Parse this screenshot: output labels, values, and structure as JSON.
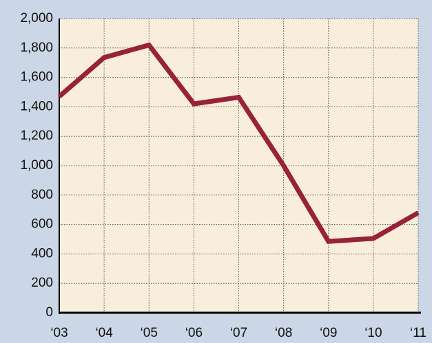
{
  "chart_data": {
    "type": "line",
    "categories": [
      "‘03",
      "‘04",
      "‘05",
      "‘06",
      "‘07",
      "‘08",
      "‘09",
      "‘10",
      "‘11"
    ],
    "values": [
      1470,
      1735,
      1820,
      1420,
      1465,
      1000,
      485,
      505,
      680
    ],
    "color": "#97223a",
    "ylim": [
      0,
      2000
    ],
    "yticks": [
      0,
      200,
      400,
      600,
      800,
      {
        "value": 1000,
        "label": "1,000"
      },
      {
        "value": 1200,
        "label": "1,200"
      },
      {
        "value": 1400,
        "label": "1,400"
      },
      {
        "value": 1600,
        "label": "1,600"
      },
      {
        "value": 1800,
        "label": "1,800"
      },
      {
        "value": 2000,
        "label": "2,000"
      }
    ],
    "grid": true
  }
}
